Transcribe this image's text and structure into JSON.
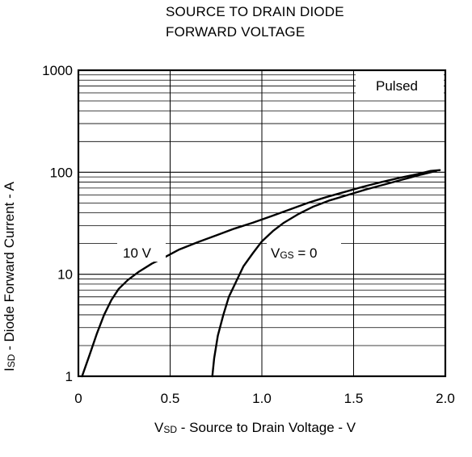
{
  "chart_data": {
    "type": "line",
    "title_lines": [
      "SOURCE TO DRAIN DIODE",
      "FORWARD VOLTAGE"
    ],
    "xlabel": {
      "main": "V",
      "sub": "SD",
      "rest": " - Source to Drain Voltage - V"
    },
    "ylabel": {
      "main": "I",
      "sub": "SD",
      "rest": " - Diode Forward Current - A"
    },
    "x_axis": {
      "min": 0,
      "max": 2.0,
      "ticks": [
        0,
        0.5,
        1.0,
        1.5,
        2.0
      ],
      "tick_labels": [
        "0",
        "0.5",
        "1.0",
        "1.5",
        "2.0"
      ]
    },
    "y_axis": {
      "scale": "log",
      "min": 1,
      "max": 1000,
      "ticks": [
        1,
        10,
        100,
        1000
      ],
      "tick_labels": [
        "1",
        "10",
        "100",
        "1000"
      ]
    },
    "grid": true,
    "annotations": {
      "pulsed": "Pulsed",
      "label_10v": "10 V",
      "label_vgs": {
        "main": "V",
        "sub": "GS",
        "rest": " = 0"
      }
    },
    "series": [
      {
        "label": "10 V",
        "points": [
          [
            0.02,
            1.0
          ],
          [
            0.06,
            1.6
          ],
          [
            0.1,
            2.6
          ],
          [
            0.14,
            4.0
          ],
          [
            0.18,
            5.6
          ],
          [
            0.22,
            7.2
          ],
          [
            0.27,
            8.8
          ],
          [
            0.33,
            10.6
          ],
          [
            0.4,
            12.7
          ],
          [
            0.48,
            15.0
          ],
          [
            0.55,
            17.5
          ],
          [
            0.65,
            20.6
          ],
          [
            0.75,
            24.0
          ],
          [
            0.85,
            28.0
          ],
          [
            0.95,
            32.0
          ],
          [
            1.05,
            37.0
          ],
          [
            1.15,
            43.0
          ],
          [
            1.25,
            50.0
          ],
          [
            1.35,
            57.0
          ],
          [
            1.45,
            64.0
          ],
          [
            1.55,
            72.0
          ],
          [
            1.65,
            80.0
          ],
          [
            1.75,
            88.0
          ],
          [
            1.85,
            96.0
          ],
          [
            1.92,
            103.0
          ],
          [
            1.97,
            105.0
          ]
        ]
      },
      {
        "label": "VGS = 0",
        "points": [
          [
            0.73,
            1.0
          ],
          [
            0.74,
            1.5
          ],
          [
            0.76,
            2.5
          ],
          [
            0.79,
            4.0
          ],
          [
            0.82,
            6.0
          ],
          [
            0.86,
            8.5
          ],
          [
            0.9,
            12.0
          ],
          [
            0.95,
            16.0
          ],
          [
            1.0,
            21.0
          ],
          [
            1.06,
            26.5
          ],
          [
            1.12,
            32.0
          ],
          [
            1.2,
            39.0
          ],
          [
            1.28,
            46.0
          ],
          [
            1.37,
            53.0
          ],
          [
            1.47,
            60.0
          ],
          [
            1.57,
            68.0
          ],
          [
            1.67,
            76.0
          ],
          [
            1.77,
            85.0
          ],
          [
            1.87,
            95.0
          ],
          [
            1.95,
            103.0
          ]
        ]
      }
    ]
  }
}
